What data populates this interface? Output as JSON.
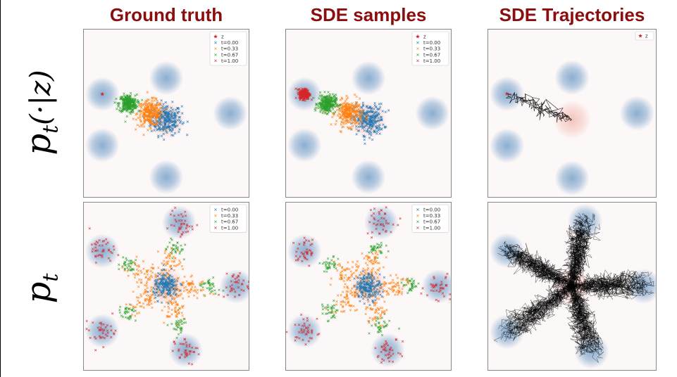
{
  "column_titles": [
    "Ground truth",
    "SDE samples",
    "SDE Trajectories"
  ],
  "row_labels": {
    "top": {
      "main": "p",
      "sub": "t",
      "tail": "(·|z)"
    },
    "bottom": {
      "main": "p",
      "sub": "t"
    }
  },
  "colors": {
    "title": "#8b0e0e",
    "t0": "#1f77b4",
    "t033": "#ff7f0e",
    "t067": "#2ca02c",
    "t1": "#d62728",
    "target_blob": "#7fa6cc",
    "source_blob": "#f2b8b0",
    "trajectory": "#000000"
  },
  "chart_data": [
    {
      "type": "scatter",
      "panel": "conditional-ground-truth",
      "legend": [
        "z",
        "t=0.00",
        "t=0.33",
        "t=0.67",
        "t=1.00"
      ],
      "legend_position": "top-right",
      "grid": false,
      "conditioning_point_z": [
        -1.0,
        0.3
      ],
      "target_modes": [
        [
          -1.0,
          0.3
        ],
        [
          0.0,
          0.55
        ],
        [
          1.0,
          0.0
        ],
        [
          -1.0,
          -0.5
        ],
        [
          0.0,
          -1.0
        ]
      ],
      "series": [
        {
          "label": "t=0.00",
          "center": [
            0.0,
            -0.1
          ],
          "spread": 0.12
        },
        {
          "label": "t=0.33",
          "center": [
            -0.25,
            0.0
          ],
          "spread": 0.1
        },
        {
          "label": "t=0.67",
          "center": [
            -0.6,
            0.15
          ],
          "spread": 0.07
        },
        {
          "label": "t=1.00",
          "center": [
            -1.0,
            0.3
          ],
          "spread": 0.0
        }
      ]
    },
    {
      "type": "scatter",
      "panel": "conditional-sde-samples",
      "legend": [
        "z",
        "t=0.00",
        "t=0.33",
        "t=0.67",
        "t=1.00"
      ],
      "legend_position": "top-right",
      "grid": false,
      "conditioning_point_z": [
        -1.0,
        0.3
      ],
      "target_modes": [
        [
          -1.0,
          0.3
        ],
        [
          0.0,
          0.55
        ],
        [
          1.0,
          0.0
        ],
        [
          -1.0,
          -0.5
        ],
        [
          0.0,
          -1.0
        ]
      ],
      "series": [
        {
          "label": "t=0.00",
          "center": [
            0.0,
            -0.1
          ],
          "spread": 0.12
        },
        {
          "label": "t=0.33",
          "center": [
            -0.3,
            0.0
          ],
          "spread": 0.1
        },
        {
          "label": "t=0.67",
          "center": [
            -0.65,
            0.15
          ],
          "spread": 0.07
        },
        {
          "label": "t=1.00",
          "center": [
            -1.0,
            0.3
          ],
          "spread": 0.04
        }
      ]
    },
    {
      "type": "line",
      "panel": "conditional-sde-trajectories",
      "legend": [
        "z"
      ],
      "legend_position": "top-right",
      "grid": false,
      "conditioning_point_z": [
        -1.0,
        0.3
      ],
      "target_modes": [
        [
          -1.0,
          0.3
        ],
        [
          0.0,
          0.55
        ],
        [
          1.0,
          0.0
        ],
        [
          -1.0,
          -0.5
        ],
        [
          0.0,
          -1.0
        ]
      ],
      "trajectories": {
        "count": 1,
        "start": [
          0.0,
          -0.1
        ],
        "end": [
          -1.0,
          0.3
        ]
      }
    },
    {
      "type": "scatter",
      "panel": "marginal-ground-truth",
      "legend": [
        "t=0.00",
        "t=0.33",
        "t=0.67",
        "t=1.00"
      ],
      "legend_position": "top-right",
      "grid": false,
      "target_modes": [
        [
          -1.0,
          0.55
        ],
        [
          0.2,
          1.0
        ],
        [
          1.1,
          0.0
        ],
        [
          -1.0,
          -0.7
        ],
        [
          0.3,
          -1.0
        ]
      ],
      "series": [
        {
          "label": "t=0.00",
          "spread": 0.12
        },
        {
          "label": "t=0.33",
          "spread": 0.3
        },
        {
          "label": "t=0.67",
          "fraction_to_modes": 0.6
        },
        {
          "label": "t=1.00",
          "fraction_to_modes": 1.0
        }
      ]
    },
    {
      "type": "scatter",
      "panel": "marginal-sde-samples",
      "legend": [
        "t=0.00",
        "t=0.33",
        "t=0.67",
        "t=1.00"
      ],
      "legend_position": "top-right",
      "grid": false,
      "target_modes": [
        [
          -1.0,
          0.55
        ],
        [
          0.2,
          1.0
        ],
        [
          1.1,
          0.0
        ],
        [
          -1.0,
          -0.7
        ],
        [
          0.3,
          -1.0
        ]
      ],
      "series": [
        {
          "label": "t=0.00",
          "spread": 0.12
        },
        {
          "label": "t=0.33",
          "spread": 0.3
        },
        {
          "label": "t=0.67",
          "fraction_to_modes": 0.6
        },
        {
          "label": "t=1.00",
          "fraction_to_modes": 1.0
        }
      ]
    },
    {
      "type": "line",
      "panel": "marginal-sde-trajectories",
      "grid": false,
      "target_modes": [
        [
          -1.0,
          0.55
        ],
        [
          0.2,
          1.0
        ],
        [
          1.1,
          0.0
        ],
        [
          -1.0,
          -0.7
        ],
        [
          0.3,
          -1.0
        ]
      ],
      "trajectories": {
        "count": 100,
        "start": [
          0.0,
          0.0
        ]
      }
    }
  ]
}
